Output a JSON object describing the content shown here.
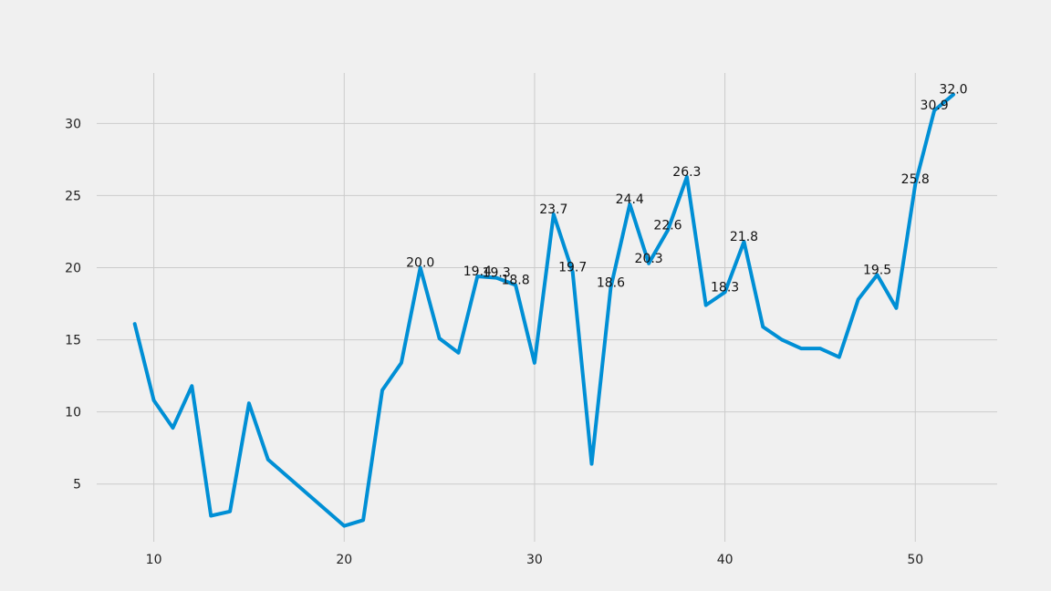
{
  "chart_data": {
    "type": "line",
    "title": "",
    "xlabel": "",
    "ylabel": "",
    "xlim": [
      7,
      54.3
    ],
    "ylim": [
      1,
      33.5
    ],
    "x_ticks": [
      10,
      20,
      30,
      40,
      50
    ],
    "y_ticks": [
      5,
      10,
      15,
      20,
      25,
      30
    ],
    "grid": true,
    "color": "#008fd5",
    "series": [
      {
        "points": [
          [
            9,
            16.1
          ],
          [
            10,
            10.8
          ],
          [
            11,
            8.9
          ],
          [
            12,
            11.8
          ],
          [
            13,
            2.8
          ],
          [
            14,
            3.1
          ],
          [
            15,
            10.6
          ],
          [
            16,
            6.7
          ],
          [
            20,
            2.1
          ],
          [
            21,
            2.5
          ],
          [
            22,
            11.5
          ],
          [
            23,
            13.4
          ],
          [
            24,
            20.0
          ],
          [
            25,
            15.1
          ],
          [
            26,
            14.1
          ],
          [
            27,
            19.4
          ],
          [
            28,
            19.3
          ],
          [
            29,
            18.8
          ],
          [
            30,
            13.4
          ],
          [
            31,
            23.7
          ],
          [
            32,
            19.7
          ],
          [
            33,
            6.4
          ],
          [
            34,
            18.6
          ],
          [
            35,
            24.4
          ],
          [
            36,
            20.3
          ],
          [
            37,
            22.6
          ],
          [
            38,
            26.3
          ],
          [
            39,
            17.4
          ],
          [
            40,
            18.3
          ],
          [
            41,
            21.8
          ],
          [
            42,
            15.9
          ],
          [
            43,
            15.0
          ],
          [
            44,
            14.4
          ],
          [
            45,
            14.4
          ],
          [
            46,
            13.8
          ],
          [
            47,
            17.8
          ],
          [
            48,
            19.5
          ],
          [
            49,
            17.2
          ],
          [
            50,
            25.8
          ],
          [
            51,
            30.9
          ],
          [
            52,
            32.0
          ]
        ]
      }
    ],
    "annotations": [
      {
        "x": 24,
        "y": 20.0,
        "text": "20.0"
      },
      {
        "x": 27,
        "y": 19.4,
        "text": "19.4"
      },
      {
        "x": 28,
        "y": 19.3,
        "text": "19.3"
      },
      {
        "x": 29,
        "y": 18.8,
        "text": "18.8"
      },
      {
        "x": 31,
        "y": 23.7,
        "text": "23.7"
      },
      {
        "x": 32,
        "y": 19.7,
        "text": "19.7"
      },
      {
        "x": 34,
        "y": 18.6,
        "text": "18.6"
      },
      {
        "x": 35,
        "y": 24.4,
        "text": "24.4"
      },
      {
        "x": 36,
        "y": 20.3,
        "text": "20.3"
      },
      {
        "x": 37,
        "y": 22.6,
        "text": "22.6"
      },
      {
        "x": 38,
        "y": 26.3,
        "text": "26.3"
      },
      {
        "x": 40,
        "y": 18.3,
        "text": "18.3"
      },
      {
        "x": 41,
        "y": 21.8,
        "text": "21.8"
      },
      {
        "x": 48,
        "y": 19.5,
        "text": "19.5"
      },
      {
        "x": 50,
        "y": 25.8,
        "text": "25.8"
      },
      {
        "x": 51,
        "y": 30.9,
        "text": "30.9"
      },
      {
        "x": 52,
        "y": 32.0,
        "text": "32.0"
      }
    ]
  }
}
